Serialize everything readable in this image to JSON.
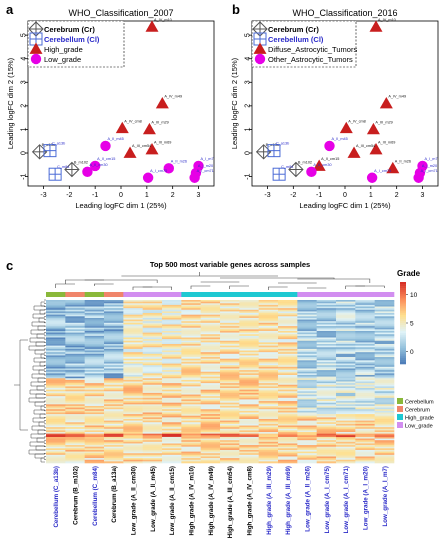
{
  "panel_letters": {
    "a": "a",
    "b": "b",
    "c": "c"
  },
  "colors": {
    "cerebrum": "#555555",
    "cerebellum": "#4b6bd6",
    "high": "#c81e1e",
    "low": "#e600e6",
    "label_dark": "#111111",
    "label_blue": "#2a2ac8",
    "legend_cerebellum": "#8ab83a",
    "legend_cerebrum": "#f0856a",
    "legend_high": "#1ec8d2",
    "legend_low": "#d28ef0"
  },
  "chart_data": [
    {
      "type": "scatter",
      "title": "WHO_Classification_2007",
      "xlabel": "Leading logFC dim 1 (25%)",
      "ylabel": "Leading logFC dim 2 (15%)",
      "xlim": [
        -3.6,
        3.6
      ],
      "ylim": [
        -1.4,
        5.6
      ],
      "xticks": [
        "-3",
        "-2",
        "-1",
        "0",
        "1",
        "2",
        "3"
      ],
      "yticks": [
        "-1",
        "0",
        "1",
        "2",
        "3",
        "4",
        "5"
      ],
      "grid": false,
      "legend_position": "top-left",
      "legend": [
        {
          "label": "Cerebrum (Cr)",
          "group": "cerebrum"
        },
        {
          "label": "Cerebellum (Cl)",
          "group": "cerebellum"
        },
        {
          "label": "High_grade",
          "group": "high"
        },
        {
          "label": "Low_grade",
          "group": "low"
        }
      ],
      "points": [
        {
          "label": "A_IV_m10",
          "x": 1.2,
          "y": 5.35,
          "group": "high"
        },
        {
          "label": "A_IV_m49",
          "x": 1.6,
          "y": 2.1,
          "group": "high"
        },
        {
          "label": "A_IV_cm8",
          "x": 0.05,
          "y": 1.05,
          "group": "high"
        },
        {
          "label": "A_III_m29",
          "x": 1.1,
          "y": 1.0,
          "group": "high"
        },
        {
          "label": "A_III_m69",
          "x": 1.2,
          "y": 0.15,
          "group": "high"
        },
        {
          "label": "A_III_cm54",
          "x": 0.35,
          "y": 0.0,
          "group": "high"
        },
        {
          "label": "A_II_m45",
          "x": -0.6,
          "y": 0.3,
          "group": "low"
        },
        {
          "label": "A_II_cm15",
          "x": -1.0,
          "y": -0.55,
          "group": "low"
        },
        {
          "label": "A_II_cm30",
          "x": -1.3,
          "y": -0.8,
          "group": "low"
        },
        {
          "label": "A_I_m7",
          "x": 3.0,
          "y": -0.55,
          "group": "low"
        },
        {
          "label": "A_I_m20",
          "x": 2.9,
          "y": -0.85,
          "group": "low"
        },
        {
          "label": "A_II_m26",
          "x": 1.85,
          "y": -0.65,
          "group": "low"
        },
        {
          "label": "A_I_cm75",
          "x": 1.05,
          "y": -1.05,
          "group": "low"
        },
        {
          "label": "A_I_cm71",
          "x": 2.85,
          "y": -1.05,
          "group": "low"
        },
        {
          "label": "B_a13a",
          "x": -3.15,
          "y": 0.05,
          "group": "cerebrum"
        },
        {
          "label": "B_m102",
          "x": -1.9,
          "y": -0.7,
          "group": "cerebrum"
        },
        {
          "label": "C_a13b",
          "x": -2.75,
          "y": 0.1,
          "group": "cerebellum"
        },
        {
          "label": "C_m84",
          "x": -2.55,
          "y": -0.9,
          "group": "cerebellum"
        }
      ]
    },
    {
      "type": "scatter",
      "title": "WHO_Classification_2016",
      "xlabel": "Leading logFC dim 1 (25%)",
      "ylabel": "Leading logFC dim 2 (15%)",
      "xlim": [
        -3.6,
        3.6
      ],
      "ylim": [
        -1.4,
        5.6
      ],
      "xticks": [
        "-3",
        "-2",
        "-1",
        "0",
        "1",
        "2",
        "3"
      ],
      "yticks": [
        "-1",
        "0",
        "1",
        "2",
        "3",
        "4",
        "5"
      ],
      "grid": false,
      "legend_position": "top-left",
      "legend": [
        {
          "label": "Cerebrum (Cr)",
          "group": "cerebrum"
        },
        {
          "label": "Cerebellum (Cl)",
          "group": "cerebellum"
        },
        {
          "label": "Diffuse_Astrocytic_Tumors",
          "group": "high"
        },
        {
          "label": "Other_Astrocytic_Tumors",
          "group": "low"
        }
      ],
      "points": [
        {
          "label": "A_IV_m10",
          "x": 1.2,
          "y": 5.35,
          "group": "high"
        },
        {
          "label": "A_IV_m49",
          "x": 1.6,
          "y": 2.1,
          "group": "high"
        },
        {
          "label": "A_IV_cm8",
          "x": 0.05,
          "y": 1.05,
          "group": "high"
        },
        {
          "label": "A_III_m29",
          "x": 1.1,
          "y": 1.0,
          "group": "high"
        },
        {
          "label": "A_III_m69",
          "x": 1.2,
          "y": 0.15,
          "group": "high"
        },
        {
          "label": "A_III_cm54",
          "x": 0.35,
          "y": 0.0,
          "group": "high"
        },
        {
          "label": "A_II_cm15",
          "x": -1.0,
          "y": -0.55,
          "group": "high"
        },
        {
          "label": "A_II_m26",
          "x": 1.85,
          "y": -0.65,
          "group": "high"
        },
        {
          "label": "A_II_m45",
          "x": -0.6,
          "y": 0.3,
          "group": "low"
        },
        {
          "label": "A_II_cm30",
          "x": -1.3,
          "y": -0.8,
          "group": "low"
        },
        {
          "label": "A_I_m7",
          "x": 3.0,
          "y": -0.55,
          "group": "low"
        },
        {
          "label": "A_I_m20",
          "x": 2.9,
          "y": -0.85,
          "group": "low"
        },
        {
          "label": "A_I_cm75",
          "x": 1.05,
          "y": -1.05,
          "group": "low"
        },
        {
          "label": "A_I_cm71",
          "x": 2.85,
          "y": -1.05,
          "group": "low"
        },
        {
          "label": "B_a13a",
          "x": -3.15,
          "y": 0.05,
          "group": "cerebrum"
        },
        {
          "label": "B_m102",
          "x": -1.9,
          "y": -0.7,
          "group": "cerebrum"
        },
        {
          "label": "C_a13b",
          "x": -2.75,
          "y": 0.1,
          "group": "cerebellum"
        },
        {
          "label": "C_m84",
          "x": -2.55,
          "y": -0.9,
          "group": "cerebellum"
        }
      ]
    },
    {
      "type": "heatmap",
      "title": "Top 500 most variable genes across samples",
      "color_key_title": "Grade",
      "color_key_ticks": [
        "10",
        "5",
        "0"
      ],
      "legend": [
        {
          "label": "Cerebellum",
          "group": "cerebellum"
        },
        {
          "label": "Cerebrum",
          "group": "cerebrum"
        },
        {
          "label": "High_grade",
          "group": "high"
        },
        {
          "label": "Low_grade",
          "group": "low"
        }
      ],
      "columns": [
        {
          "label": "Cerebellum (C_a13b)",
          "group": "cerebellum",
          "blue": true
        },
        {
          "label": "Cerebrum (B_m102)",
          "group": "cerebrum",
          "blue": false
        },
        {
          "label": "Cerebellum (C_m84)",
          "group": "cerebellum",
          "blue": true
        },
        {
          "label": "Cerebrum (B_a13a)",
          "group": "cerebrum",
          "blue": false
        },
        {
          "label": "Low_grade (A_II_cm30)",
          "group": "low",
          "blue": false
        },
        {
          "label": "Low_grade (A_II_m45)",
          "group": "low",
          "blue": false
        },
        {
          "label": "Low_grade (A_II_cm15)",
          "group": "low",
          "blue": false
        },
        {
          "label": "High_grade (A_IV_m10)",
          "group": "high",
          "blue": false
        },
        {
          "label": "High_grade (A_IV_m49)",
          "group": "high",
          "blue": false
        },
        {
          "label": "High_grade (A_III_cm54)",
          "group": "high",
          "blue": false
        },
        {
          "label": "High_grade (A_IV_cm8)",
          "group": "high",
          "blue": false
        },
        {
          "label": "High_grade (A_III_m29)",
          "group": "high",
          "blue": true
        },
        {
          "label": "High_grade (A_III_m69)",
          "group": "high",
          "blue": true
        },
        {
          "label": "Low_grade (A_II_m26)",
          "group": "low",
          "blue": true
        },
        {
          "label": "Low_grade (A_I_cm75)",
          "group": "low",
          "blue": true
        },
        {
          "label": "Low_grade (A_I_cm71)",
          "group": "low",
          "blue": true
        },
        {
          "label": "Low_grade (A_I_m20)",
          "group": "low",
          "blue": true
        },
        {
          "label": "Low_grade (A_I_m7)",
          "group": "low",
          "blue": true
        }
      ]
    }
  ]
}
